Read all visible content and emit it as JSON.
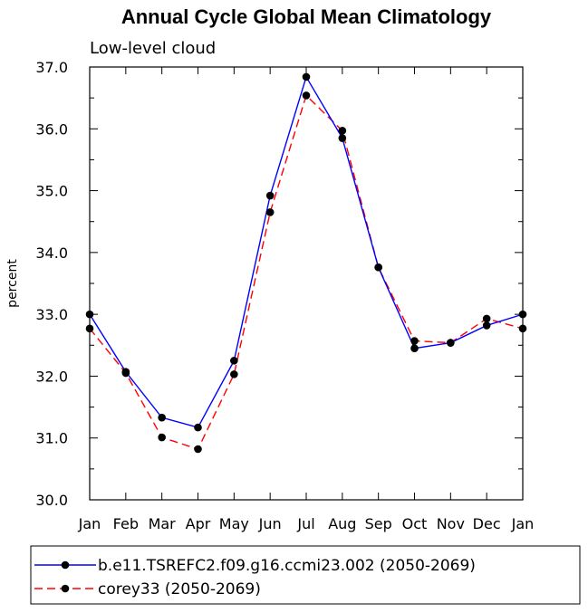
{
  "chart_data": {
    "type": "line",
    "title": "Annual Cycle Global Mean Climatology",
    "subtitle": "Low-level cloud",
    "ylabel": "percent",
    "xlabel": "",
    "categories": [
      "Jan",
      "Feb",
      "Mar",
      "Apr",
      "May",
      "Jun",
      "Jul",
      "Aug",
      "Sep",
      "Oct",
      "Nov",
      "Dec",
      "Jan"
    ],
    "ylim": [
      30.0,
      37.0
    ],
    "yticks": [
      "30.0",
      "31.0",
      "32.0",
      "33.0",
      "34.0",
      "35.0",
      "36.0",
      "37.0"
    ],
    "legend_position": "bottom",
    "series": [
      {
        "name": "b.e11.TSREFC2.f09.g16.ccmi23.002 (2050-2069)",
        "color": "#0000ff",
        "line_style": "solid",
        "marker": "filled-circle",
        "values": [
          33.0,
          32.07,
          31.33,
          31.17,
          32.25,
          34.92,
          36.84,
          35.85,
          33.76,
          32.45,
          32.54,
          32.82,
          33.0
        ]
      },
      {
        "name": "corey33 (2050-2069)",
        "color": "#ff0000",
        "line_style": "dashed",
        "marker": "filled-circle",
        "values": [
          32.77,
          32.05,
          31.01,
          30.82,
          32.03,
          34.65,
          36.54,
          35.97,
          33.76,
          32.57,
          32.54,
          32.93,
          32.77
        ]
      }
    ]
  }
}
